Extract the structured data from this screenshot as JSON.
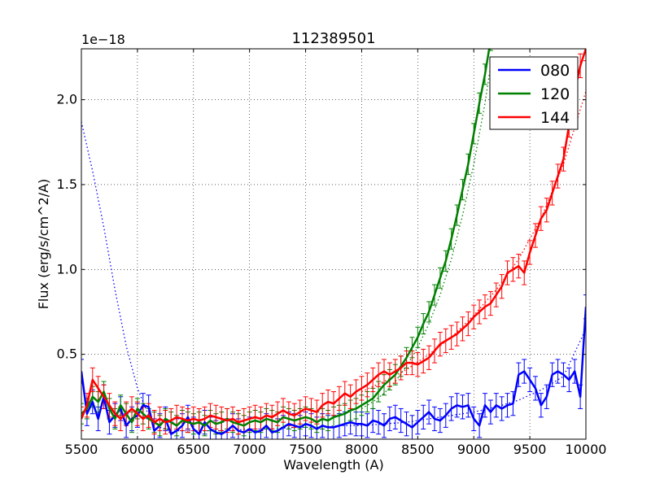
{
  "chart_data": {
    "type": "line",
    "title": "112389501",
    "xlabel": "Wavelength (A)",
    "ylabel": "Flux (erg/s/cm^2/A)",
    "offset_label": "1e−18",
    "xlim": [
      5500,
      10000
    ],
    "ylim": [
      0.0,
      2.3
    ],
    "x_ticks": [
      5500,
      6000,
      6500,
      7000,
      7500,
      8000,
      8500,
      9000,
      9500,
      10000
    ],
    "y_ticks": [
      0.5,
      1.0,
      1.5,
      2.0
    ],
    "y_tick_labels": [
      "0.5",
      "1.0",
      "1.5",
      "2.0"
    ],
    "grid": true,
    "legend_position": "top-right",
    "series": [
      {
        "name": "080",
        "color": "#0000ff",
        "x": [
          5500,
          5550,
          5600,
          5650,
          5700,
          5750,
          5800,
          5850,
          5900,
          5950,
          6000,
          6050,
          6100,
          6150,
          6200,
          6250,
          6300,
          6350,
          6400,
          6450,
          6500,
          6550,
          6600,
          6650,
          6700,
          6750,
          6800,
          6850,
          6900,
          6950,
          7000,
          7050,
          7100,
          7150,
          7200,
          7250,
          7300,
          7350,
          7400,
          7450,
          7500,
          7550,
          7600,
          7650,
          7700,
          7750,
          7800,
          7850,
          7900,
          7950,
          8000,
          8050,
          8100,
          8150,
          8200,
          8250,
          8300,
          8350,
          8400,
          8450,
          8500,
          8550,
          8600,
          8650,
          8700,
          8750,
          8800,
          8850,
          8900,
          8950,
          9000,
          9050,
          9100,
          9150,
          9200,
          9250,
          9300,
          9350,
          9400,
          9450,
          9500,
          9550,
          9600,
          9650,
          9700,
          9750,
          9800,
          9850,
          9900,
          9950,
          10000
        ],
        "y": [
          0.4,
          0.15,
          0.22,
          0.12,
          0.25,
          0.1,
          0.14,
          0.18,
          0.08,
          0.12,
          0.14,
          0.2,
          0.19,
          0.05,
          0.08,
          0.12,
          0.03,
          0.05,
          0.08,
          0.13,
          0.06,
          0.03,
          0.1,
          0.06,
          0.04,
          0.03,
          0.05,
          0.08,
          0.05,
          0.04,
          0.06,
          0.04,
          0.05,
          0.08,
          0.04,
          0.05,
          0.07,
          0.09,
          0.08,
          0.07,
          0.09,
          0.08,
          0.06,
          0.08,
          0.07,
          0.07,
          0.08,
          0.09,
          0.1,
          0.09,
          0.09,
          0.08,
          0.11,
          0.1,
          0.08,
          0.12,
          0.13,
          0.11,
          0.09,
          0.07,
          0.1,
          0.13,
          0.16,
          0.12,
          0.11,
          0.14,
          0.18,
          0.2,
          0.19,
          0.2,
          0.12,
          0.08,
          0.2,
          0.16,
          0.2,
          0.18,
          0.2,
          0.21,
          0.38,
          0.4,
          0.35,
          0.3,
          0.2,
          0.25,
          0.38,
          0.4,
          0.38,
          0.35,
          0.4,
          0.25,
          0.78
        ],
        "error": 0.07,
        "model_x": [
          5500,
          5600,
          5700,
          5800,
          5900,
          6000,
          6100,
          6200,
          6300,
          6400,
          6600,
          6800,
          7000,
          7200,
          7400,
          7600,
          7800,
          8000,
          8200,
          8400,
          8600,
          8800,
          9000,
          9200,
          9400,
          9600,
          9800,
          10000
        ],
        "model_y": [
          1.87,
          1.58,
          1.25,
          0.88,
          0.55,
          0.3,
          0.14,
          0.07,
          0.05,
          0.05,
          0.05,
          0.05,
          0.06,
          0.06,
          0.07,
          0.07,
          0.08,
          0.08,
          0.09,
          0.1,
          0.12,
          0.14,
          0.16,
          0.19,
          0.23,
          0.29,
          0.37,
          0.65
        ]
      },
      {
        "name": "120",
        "color": "#008000",
        "x": [
          5500,
          5550,
          5600,
          5650,
          5700,
          5750,
          5800,
          5850,
          5900,
          5950,
          6000,
          6050,
          6100,
          6150,
          6200,
          6250,
          6300,
          6350,
          6400,
          6450,
          6500,
          6550,
          6600,
          6650,
          6700,
          6750,
          6800,
          6850,
          6900,
          6950,
          7000,
          7050,
          7100,
          7150,
          7200,
          7250,
          7300,
          7350,
          7400,
          7450,
          7500,
          7550,
          7600,
          7650,
          7700,
          7750,
          7800,
          7850,
          7900,
          7950,
          8000,
          8050,
          8100,
          8150,
          8200,
          8250,
          8300,
          8350,
          8400,
          8450,
          8500,
          8550,
          8600,
          8650,
          8700,
          8750,
          8800,
          8850,
          8900,
          8950,
          9000,
          9050,
          9100,
          9150
        ],
        "y": [
          0.15,
          0.18,
          0.25,
          0.22,
          0.28,
          0.18,
          0.12,
          0.2,
          0.15,
          0.1,
          0.18,
          0.15,
          0.12,
          0.1,
          0.08,
          0.12,
          0.1,
          0.08,
          0.11,
          0.1,
          0.09,
          0.1,
          0.08,
          0.11,
          0.09,
          0.1,
          0.12,
          0.1,
          0.09,
          0.08,
          0.1,
          0.11,
          0.1,
          0.12,
          0.11,
          0.1,
          0.13,
          0.12,
          0.11,
          0.12,
          0.13,
          0.12,
          0.1,
          0.12,
          0.11,
          0.13,
          0.14,
          0.15,
          0.17,
          0.18,
          0.2,
          0.22,
          0.24,
          0.28,
          0.32,
          0.35,
          0.38,
          0.43,
          0.48,
          0.54,
          0.6,
          0.68,
          0.75,
          0.85,
          0.95,
          1.05,
          1.18,
          1.32,
          1.47,
          1.62,
          1.8,
          1.98,
          2.15,
          2.35
        ],
        "error": 0.06,
        "model_x": [
          8000,
          8100,
          8200,
          8300,
          8400,
          8500,
          8600,
          8700,
          8800,
          8900,
          9000,
          9100,
          9150
        ],
        "model_y": [
          0.18,
          0.22,
          0.27,
          0.34,
          0.43,
          0.54,
          0.68,
          0.85,
          1.06,
          1.32,
          1.62,
          1.98,
          2.2
        ]
      },
      {
        "name": "144",
        "color": "#ff0000",
        "x": [
          5500,
          5550,
          5600,
          5650,
          5700,
          5750,
          5800,
          5850,
          5900,
          5950,
          6000,
          6050,
          6100,
          6150,
          6200,
          6250,
          6300,
          6350,
          6400,
          6450,
          6500,
          6550,
          6600,
          6650,
          6700,
          6750,
          6800,
          6850,
          6900,
          6950,
          7000,
          7050,
          7100,
          7150,
          7200,
          7250,
          7300,
          7350,
          7400,
          7450,
          7500,
          7550,
          7600,
          7650,
          7700,
          7750,
          7800,
          7850,
          7900,
          7950,
          8000,
          8050,
          8100,
          8150,
          8200,
          8250,
          8300,
          8350,
          8400,
          8450,
          8500,
          8550,
          8600,
          8650,
          8700,
          8750,
          8800,
          8850,
          8900,
          8950,
          9000,
          9050,
          9100,
          9150,
          9200,
          9250,
          9300,
          9350,
          9400,
          9450,
          9500,
          9550,
          9600,
          9650,
          9700,
          9750,
          9800,
          9850,
          9900,
          9950,
          10000
        ],
        "y": [
          0.12,
          0.2,
          0.35,
          0.3,
          0.25,
          0.2,
          0.15,
          0.12,
          0.15,
          0.18,
          0.15,
          0.12,
          0.14,
          0.1,
          0.12,
          0.1,
          0.11,
          0.13,
          0.12,
          0.11,
          0.12,
          0.11,
          0.12,
          0.14,
          0.13,
          0.12,
          0.11,
          0.12,
          0.1,
          0.11,
          0.12,
          0.13,
          0.12,
          0.14,
          0.13,
          0.15,
          0.17,
          0.15,
          0.14,
          0.16,
          0.18,
          0.17,
          0.16,
          0.2,
          0.22,
          0.21,
          0.24,
          0.27,
          0.25,
          0.28,
          0.3,
          0.32,
          0.35,
          0.38,
          0.4,
          0.38,
          0.4,
          0.42,
          0.45,
          0.45,
          0.44,
          0.46,
          0.48,
          0.52,
          0.56,
          0.58,
          0.6,
          0.62,
          0.65,
          0.68,
          0.72,
          0.75,
          0.78,
          0.8,
          0.85,
          0.9,
          0.98,
          1.0,
          1.02,
          0.98,
          1.1,
          1.2,
          1.3,
          1.35,
          1.45,
          1.55,
          1.65,
          1.85,
          2.05,
          2.2,
          2.3
        ],
        "error": 0.07,
        "model_x": [
          8000,
          8200,
          8400,
          8600,
          8800,
          9000,
          9200,
          9400,
          9600,
          9800,
          10000
        ],
        "model_y": [
          0.28,
          0.34,
          0.41,
          0.5,
          0.6,
          0.73,
          0.88,
          1.06,
          1.3,
          1.62,
          2.05
        ]
      }
    ]
  }
}
